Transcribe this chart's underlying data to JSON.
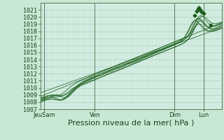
{
  "xlabel": "Pression niveau de la mer( hPa )",
  "bg_color": "#c8e8d4",
  "plot_bg_color": "#d4eee4",
  "grid_color_h": "#a0c8b0",
  "grid_color_v": "#b8d8c4",
  "line_color": "#1a5c1a",
  "ylim": [
    1007,
    1022
  ],
  "yticks": [
    1007,
    1008,
    1009,
    1010,
    1011,
    1012,
    1013,
    1014,
    1015,
    1016,
    1017,
    1018,
    1019,
    1020,
    1021
  ],
  "xtick_labels": [
    "JeuSam",
    "Ven",
    "Dim",
    "Lun"
  ],
  "xtick_pos": [
    0.02,
    0.3,
    0.74,
    0.9
  ],
  "xlabel_fontsize": 8,
  "tick_fontsize": 6,
  "num_points": 200
}
